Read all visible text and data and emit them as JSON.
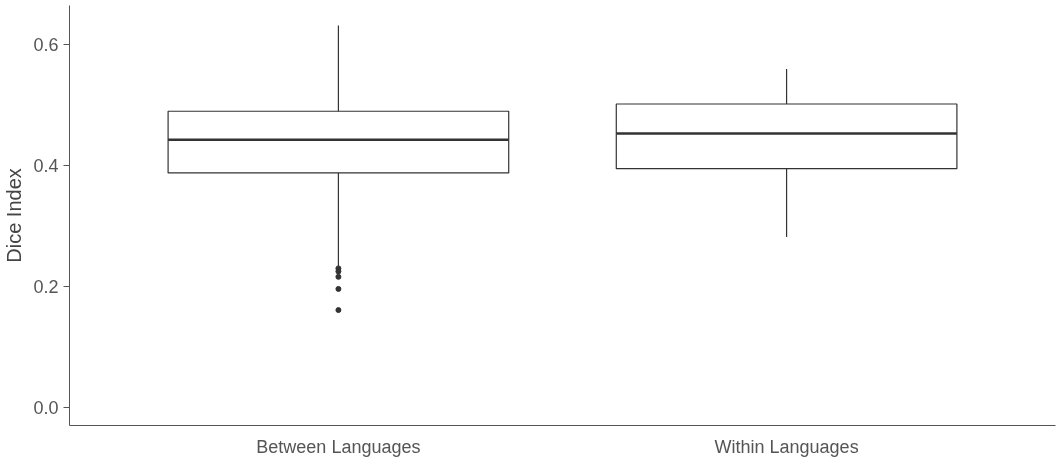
{
  "chart_data": {
    "type": "box",
    "ylabel": "Dice Index",
    "categories": [
      "Between Languages",
      "Within Languages"
    ],
    "boxes": [
      {
        "low": 0.234,
        "q1": 0.388,
        "median": 0.443,
        "q3": 0.49,
        "high": 0.632,
        "outliers": [
          0.23,
          0.225,
          0.216,
          0.196,
          0.161
        ]
      },
      {
        "low": 0.282,
        "q1": 0.395,
        "median": 0.453,
        "q3": 0.502,
        "high": 0.56
      }
    ],
    "color": "#333333",
    "ylim": [
      -0.03,
      0.665
    ],
    "yticks": [
      {
        "value": 0,
        "label": "0.0"
      },
      0.2,
      0.4,
      0.6
    ],
    "grid": false
  }
}
